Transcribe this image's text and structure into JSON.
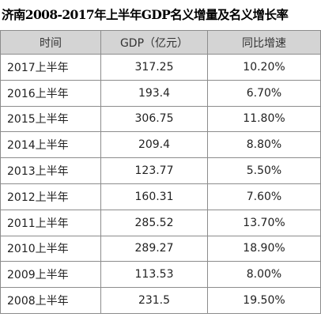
{
  "header": {
    "title": "济南2008-2017年上半年GDP名义增量及名义增长率"
  },
  "table": {
    "columns": [
      "时间",
      "GDP（亿元）",
      "同比增速"
    ],
    "rows": [
      [
        "2017上半年",
        "317.25",
        "10.20%"
      ],
      [
        "2016上半年",
        "193.4",
        "6.70%"
      ],
      [
        "2015上半年",
        "306.75",
        "11.80%"
      ],
      [
        "2014上半年",
        "209.4",
        "8.80%"
      ],
      [
        "2013上半年",
        "123.77",
        "5.50%"
      ],
      [
        "2012上半年",
        "160.31",
        "7.60%"
      ],
      [
        "2011上半年",
        "285.52",
        "13.70%"
      ],
      [
        "2010上半年",
        "289.27",
        "18.90%"
      ],
      [
        "2009上半年",
        "113.53",
        "8.00%"
      ],
      [
        "2008上半年",
        "231.5",
        "19.50%"
      ]
    ]
  }
}
